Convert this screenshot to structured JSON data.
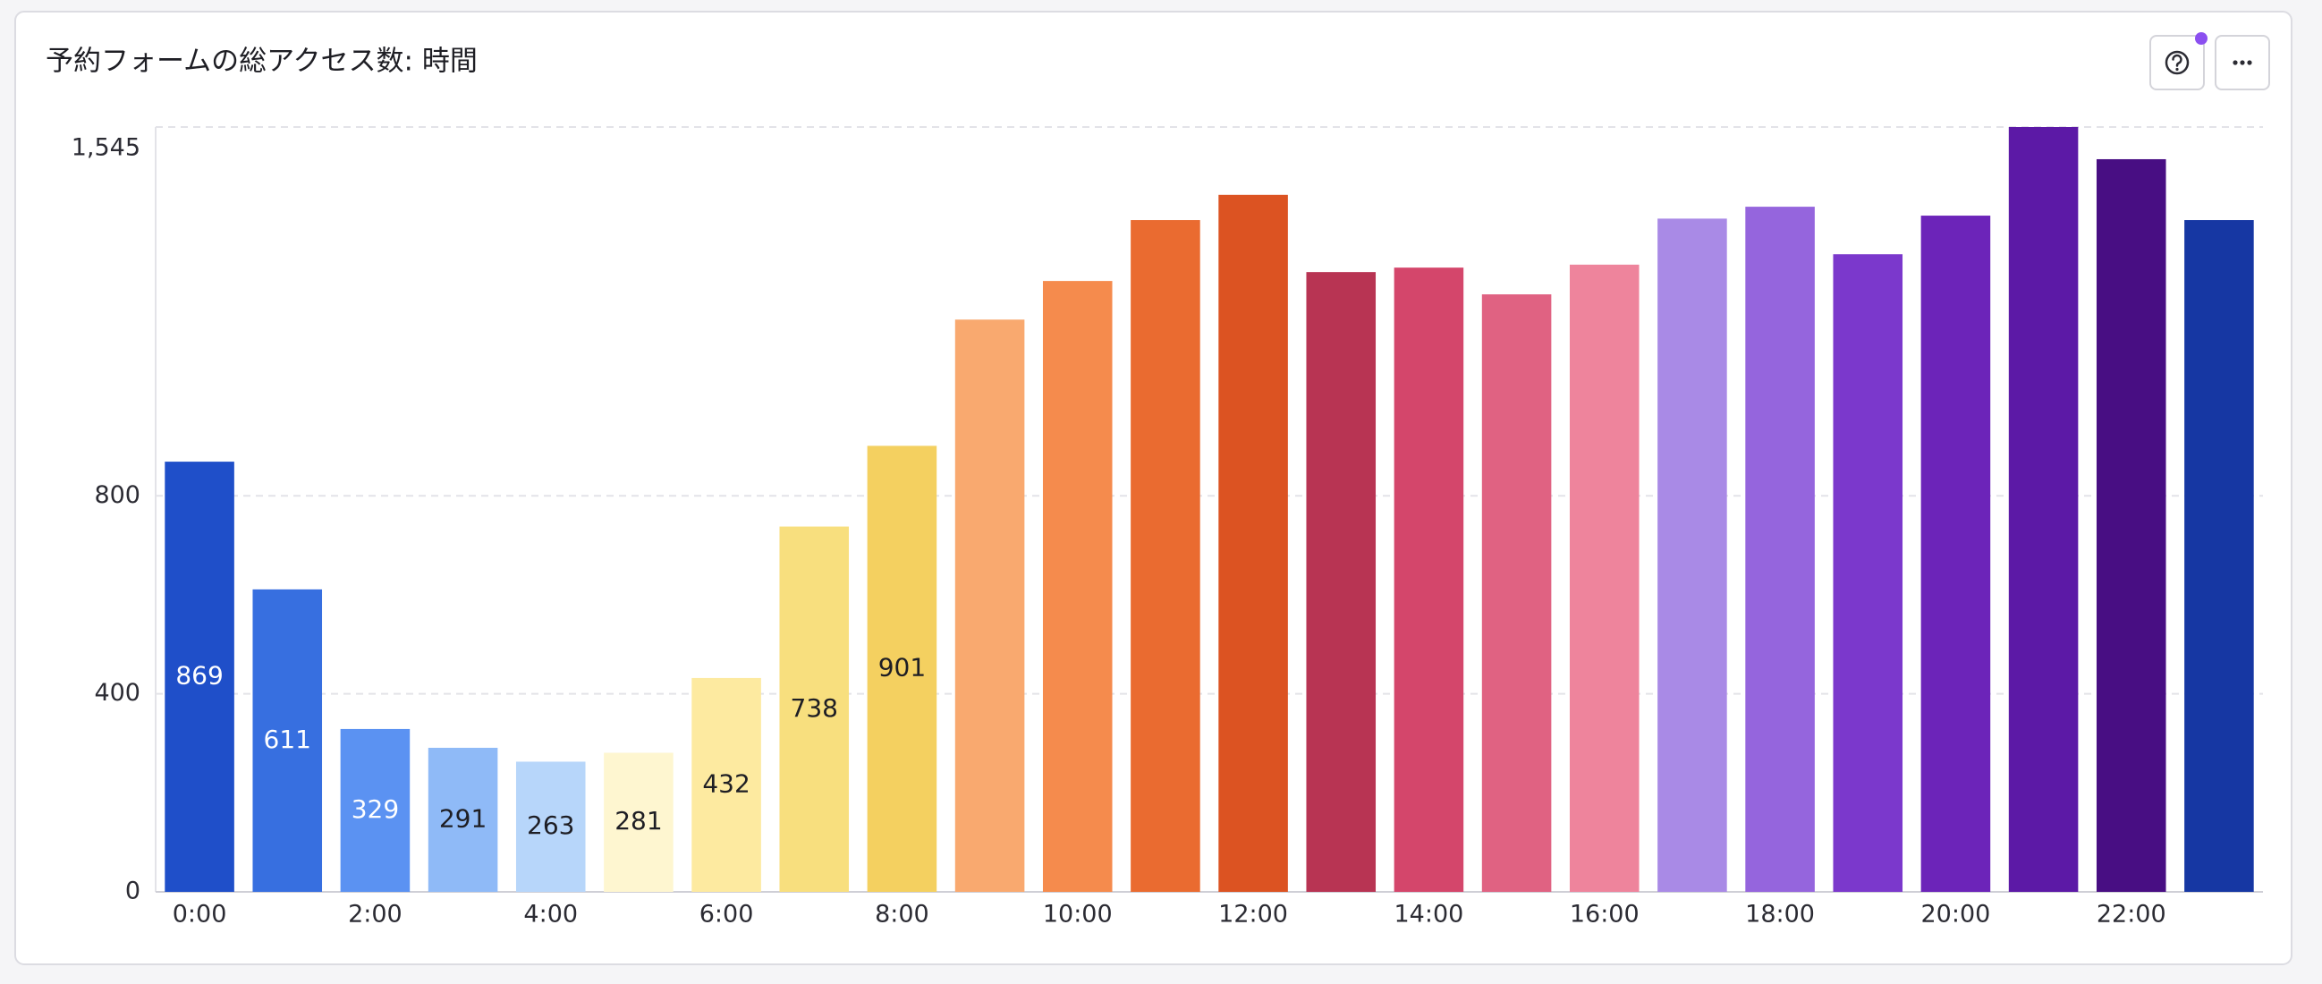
{
  "chart_data": {
    "type": "bar",
    "title": "予約フォームの総アクセス数: 時間",
    "categories": [
      "0:00",
      null,
      "2:00",
      null,
      "4:00",
      null,
      "6:00",
      null,
      "8:00",
      null,
      "10:00",
      null,
      "12:00",
      null,
      "14:00",
      null,
      "16:00",
      null,
      "18:00",
      null,
      "20:00",
      null,
      "22:00",
      null
    ],
    "values": [
      869,
      611,
      329,
      291,
      263,
      281,
      432,
      738,
      901,
      1156,
      1234,
      1357,
      1408,
      1252,
      1261,
      1207,
      1267,
      1360,
      1384,
      1288,
      1366,
      1545,
      1480,
      1357
    ],
    "value_labels": [
      "869",
      "611",
      "329",
      "291",
      "263",
      "281",
      "432",
      "738",
      "901",
      null,
      null,
      null,
      null,
      null,
      null,
      null,
      null,
      null,
      null,
      null,
      null,
      null,
      null,
      null
    ],
    "colors": [
      "#1f4fc9",
      "#376fe0",
      "#5b92f2",
      "#8fbaf7",
      "#b7d6fa",
      "#fef6d0",
      "#fdeaa0",
      "#f8df7e",
      "#f4d060",
      "#f9a96f",
      "#f58b4d",
      "#ea6b30",
      "#dc5322",
      "#b83453",
      "#d4466b",
      "#e06282",
      "#ee849c",
      "#a98ae6",
      "#9565dd",
      "#7b38cc",
      "#6c24b9",
      "#5c19a6",
      "#480e83",
      "#1637a3"
    ],
    "ylim": [
      0,
      1545
    ],
    "yticks": [
      0,
      400,
      800,
      {
        "value": 1545,
        "label": "1,545"
      }
    ],
    "grid": true
  }
}
